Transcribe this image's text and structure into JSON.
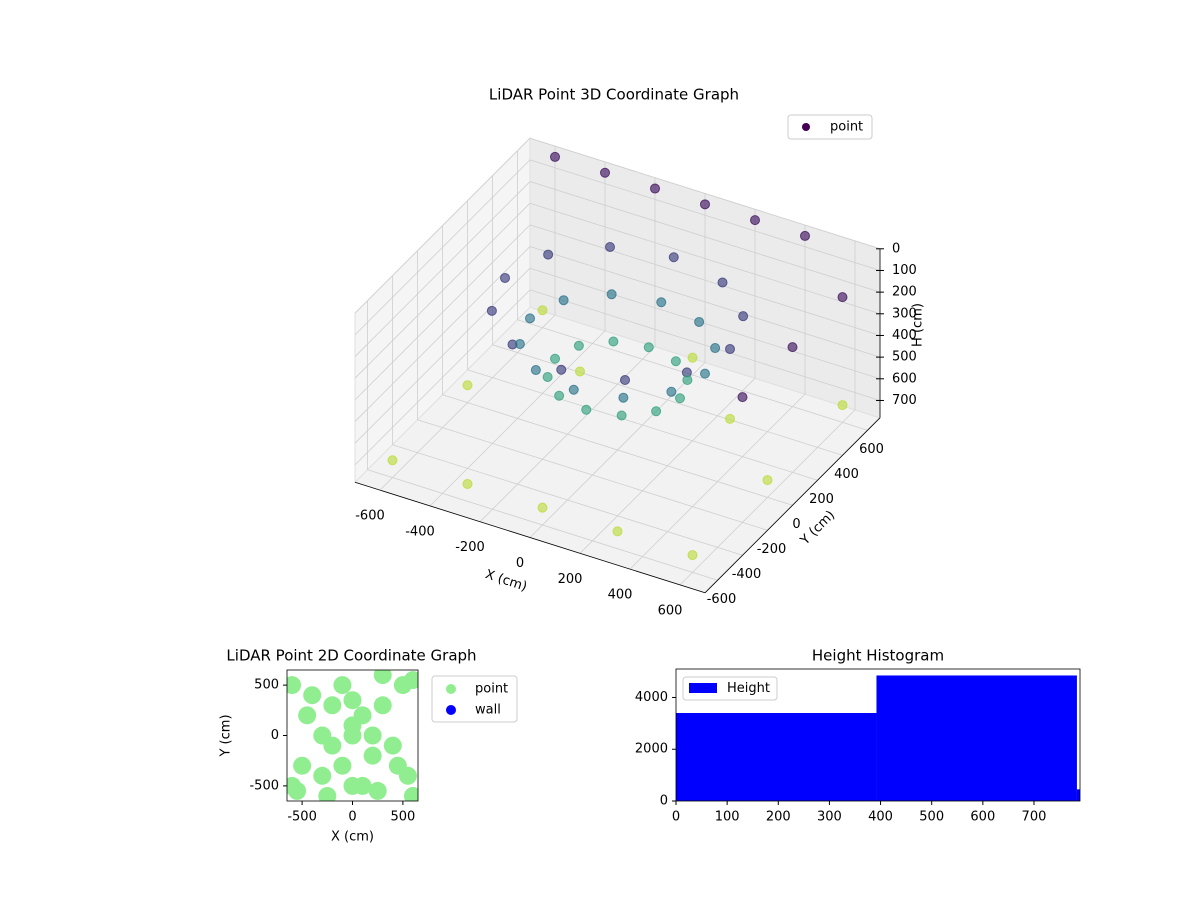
{
  "chart_data": [
    {
      "type": "scatter3d",
      "title": "LiDAR Point 3D Coordinate Graph",
      "xlabel": "X (cm)",
      "ylabel": "Y (cm)",
      "zlabel": "H (cm)",
      "xlim": [
        -700,
        700
      ],
      "ylim": [
        -700,
        700
      ],
      "zlim": [
        0,
        780
      ],
      "z_inverted": true,
      "xticks": [
        -600,
        -400,
        -200,
        0,
        200,
        400,
        600
      ],
      "yticks": [
        -600,
        -400,
        -200,
        0,
        200,
        400,
        600
      ],
      "zticks": [
        0,
        100,
        200,
        300,
        400,
        500,
        600,
        700
      ],
      "colormap": "viridis",
      "legend": "upper right",
      "series": [
        {
          "name": "point",
          "x": [
            450,
            390,
            225,
            0,
            -225,
            -390,
            -450,
            -390,
            -225,
            0,
            225,
            390,
            350,
            303,
            175,
            0,
            -175,
            -303,
            -350,
            -303,
            -175,
            0,
            175,
            303,
            250,
            217,
            125,
            0,
            -125,
            -217,
            -250,
            -217,
            -125,
            0,
            125,
            217,
            -600,
            -300,
            0,
            300,
            600,
            -600,
            600,
            -600,
            0,
            600,
            300,
            -300,
            -600,
            -400,
            -200,
            0,
            200,
            400,
            700,
            700,
            700
          ],
          "y": [
            0,
            225,
            390,
            450,
            390,
            225,
            0,
            -225,
            -390,
            -450,
            -390,
            -225,
            0,
            175,
            303,
            350,
            303,
            175,
            0,
            -175,
            -303,
            -350,
            -303,
            -175,
            0,
            125,
            217,
            250,
            217,
            125,
            0,
            -125,
            -217,
            -250,
            -217,
            -125,
            -600,
            -600,
            -600,
            -600,
            -600,
            0,
            0,
            600,
            600,
            600,
            300,
            300,
            700,
            700,
            700,
            700,
            700,
            700,
            400,
            0,
            -400
          ],
          "z": [
            150,
            150,
            150,
            150,
            150,
            150,
            150,
            150,
            150,
            150,
            150,
            150,
            300,
            300,
            300,
            300,
            300,
            300,
            300,
            300,
            300,
            300,
            300,
            300,
            450,
            450,
            450,
            450,
            450,
            450,
            450,
            450,
            450,
            450,
            450,
            450,
            700,
            700,
            700,
            700,
            700,
            700,
            700,
            700,
            700,
            700,
            700,
            700,
            50,
            50,
            50,
            50,
            50,
            50,
            50,
            50,
            50
          ]
        }
      ]
    },
    {
      "type": "scatter",
      "title": "LiDAR Point 2D Coordinate Graph",
      "xlabel": "X (cm)",
      "ylabel": "Y (cm)",
      "xlim": [
        -650,
        650
      ],
      "ylim": [
        -650,
        650
      ],
      "xticks": [
        -500,
        0,
        500
      ],
      "yticks": [
        -500,
        0,
        500
      ],
      "legend": "outside right",
      "series": [
        {
          "name": "point",
          "color": "#90ee90",
          "x": [
            -600,
            -500,
            -550,
            -400,
            -300,
            -200,
            -100,
            0,
            100,
            200,
            300,
            400,
            500,
            550,
            600,
            -300,
            -200,
            0,
            200,
            300,
            -100,
            100,
            0,
            -450,
            450,
            -600,
            600,
            -250,
            250,
            0
          ],
          "y": [
            500,
            -300,
            -550,
            400,
            -400,
            300,
            500,
            -500,
            200,
            -200,
            600,
            -100,
            500,
            -400,
            -600,
            0,
            -100,
            100,
            0,
            300,
            -300,
            -500,
            0,
            200,
            -300,
            -500,
            550,
            -600,
            -550,
            350
          ]
        },
        {
          "name": "wall",
          "color": "#0000ff",
          "x": [],
          "y": []
        }
      ]
    },
    {
      "type": "histogram",
      "title": "Height Histogram",
      "bins": [
        0,
        392,
        784,
        790
      ],
      "counts": [
        3400,
        4850,
        450
      ],
      "name": "Height",
      "color": "#0000ff",
      "xlim": [
        0,
        790
      ],
      "ylim": [
        0,
        5100
      ],
      "xticks": [
        0,
        100,
        200,
        300,
        400,
        500,
        600,
        700
      ],
      "yticks": [
        0,
        2000,
        4000
      ],
      "legend": "upper left"
    }
  ]
}
